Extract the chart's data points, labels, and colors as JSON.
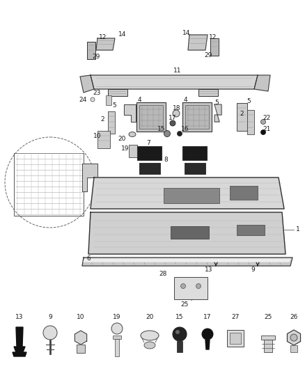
{
  "bg_color": "#ffffff",
  "fig_width": 4.38,
  "fig_height": 5.33,
  "dpi": 100,
  "label_fs": 6.5,
  "label_color": "#1a1a1a",
  "line_color": "#444444",
  "draw_color": "#333333",
  "light_fill": "#e8e8e8",
  "mid_fill": "#d0d0d0",
  "dark_fill": "#555555"
}
